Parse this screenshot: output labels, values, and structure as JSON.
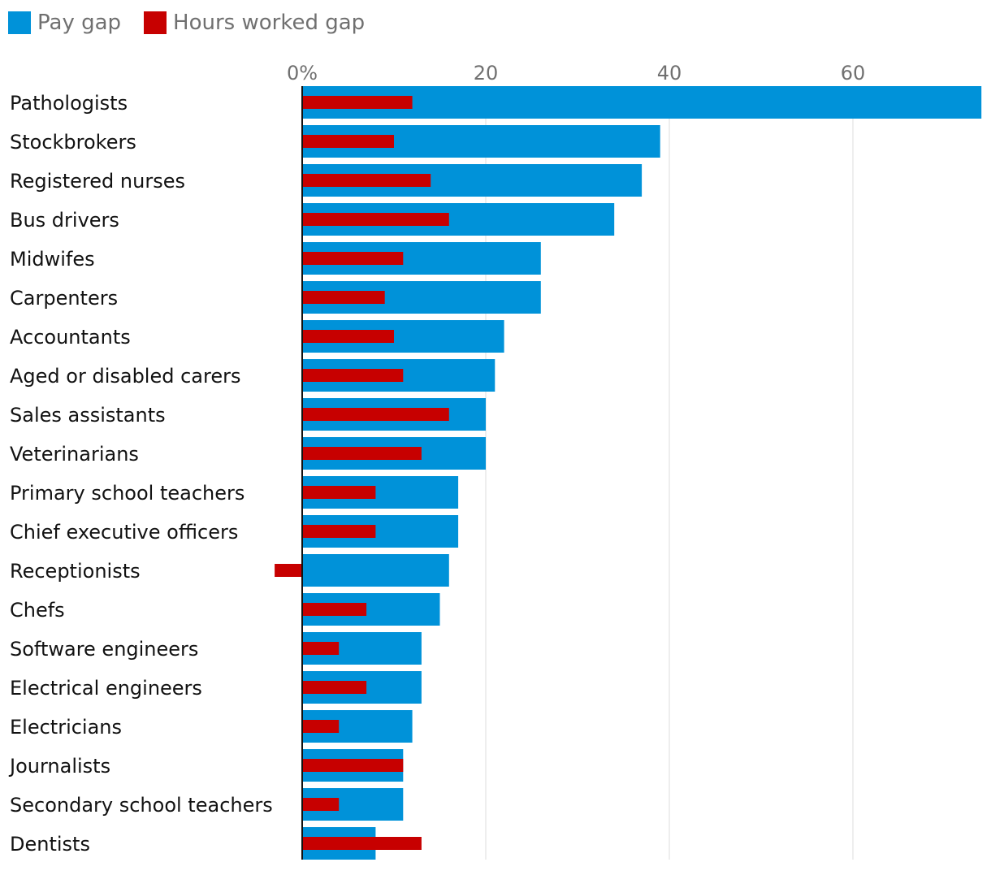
{
  "colors": {
    "pay_gap": "#0092d9",
    "hours_gap": "#c70000",
    "grid": "#dcdcdc",
    "axis": "#121212"
  },
  "chart_data": {
    "type": "bar",
    "orientation": "horizontal",
    "title": "",
    "xlabel": "",
    "ylabel": "",
    "x_ticks": [
      "0%",
      "20",
      "40",
      "60"
    ],
    "x_tick_values": [
      0,
      20,
      40,
      60
    ],
    "xlim": [
      -3,
      74
    ],
    "legend_position": "top-left",
    "categories": [
      "Pathologists",
      "Stockbrokers",
      "Registered nurses",
      "Bus drivers",
      "Midwifes",
      "Carpenters",
      "Accountants",
      "Aged or disabled carers",
      "Sales assistants",
      "Veterinarians",
      "Primary school teachers",
      "Chief executive officers",
      "Receptionists",
      "Chefs",
      "Software engineers",
      "Electrical engineers",
      "Electricians",
      "Journalists",
      "Secondary school teachers",
      "Dentists"
    ],
    "series": [
      {
        "name": "Pay gap",
        "values": [
          74,
          39,
          37,
          34,
          26,
          26,
          22,
          21,
          20,
          20,
          17,
          17,
          16,
          15,
          13,
          13,
          12,
          11,
          11,
          8
        ]
      },
      {
        "name": "Hours worked gap",
        "values": [
          12,
          10,
          14,
          16,
          11,
          9,
          10,
          11,
          16,
          13,
          8,
          8,
          -3,
          7,
          4,
          7,
          4,
          11,
          4,
          13
        ]
      }
    ]
  }
}
